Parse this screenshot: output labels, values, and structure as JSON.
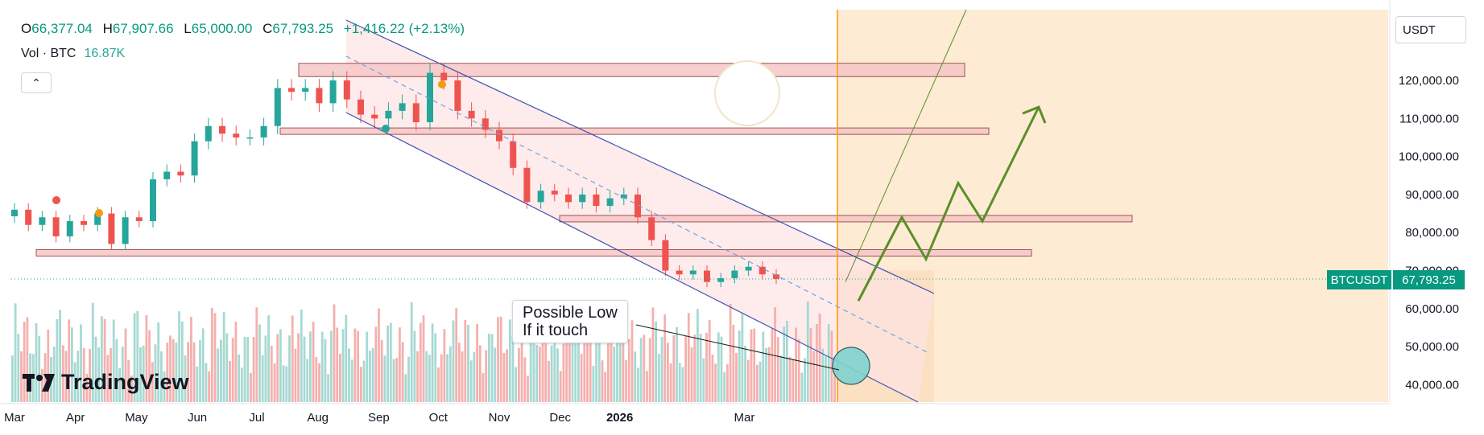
{
  "header": {
    "open_label": "O",
    "open": "66,377.04",
    "high_label": "H",
    "high": "67,907.66",
    "low_label": "L",
    "low": "65,000.00",
    "close_label": "C",
    "close": "67,793.25",
    "change": "+1,416.22 (+2.13%)"
  },
  "volume": {
    "label": "Vol · BTC",
    "value": "16.87K"
  },
  "currency": "USDT",
  "price_tag": {
    "symbol": "BTCUSDT",
    "price": "67,793.25"
  },
  "annotation": {
    "line1": "Possible Low",
    "line2": "If it touch"
  },
  "brand": "TradingView",
  "colors": {
    "up": "#26a69a",
    "down": "#ef5350",
    "zone_fill": "#f7c7c7",
    "zone_stroke": "#8b3a3a",
    "channel": "#3f51b5",
    "projection": "#5a8f29",
    "future_bg": "#fdebd3",
    "now_line": "#ff9800"
  },
  "chart_data": {
    "type": "candlestick",
    "symbol": "BTCUSDT",
    "ylim": [
      35000,
      130000
    ],
    "y_ticks": [
      {
        "value": 120000,
        "label": "120,000.00"
      },
      {
        "value": 110000,
        "label": "110,000.00"
      },
      {
        "value": 100000,
        "label": "100,000.00"
      },
      {
        "value": 90000,
        "label": "90,000.00"
      },
      {
        "value": 80000,
        "label": "80,000.00"
      },
      {
        "value": 70000,
        "label": "70,000.00"
      },
      {
        "value": 60000,
        "label": "60,000.00"
      },
      {
        "value": 50000,
        "label": "50,000.00"
      },
      {
        "value": 40000,
        "label": "40,000.00"
      }
    ],
    "x_ticks": [
      {
        "label": "Mar",
        "week": 0
      },
      {
        "label": "Apr",
        "week": 4.4
      },
      {
        "label": "May",
        "week": 8.8
      },
      {
        "label": "Jun",
        "week": 13.2
      },
      {
        "label": "Jul",
        "week": 17.5
      },
      {
        "label": "Aug",
        "week": 21.9
      },
      {
        "label": "Sep",
        "week": 26.3
      },
      {
        "label": "Oct",
        "week": 30.6
      },
      {
        "label": "Nov",
        "week": 35.0
      },
      {
        "label": "Dec",
        "week": 39.4
      },
      {
        "label": "2026",
        "week": 43.7,
        "bold": true
      },
      {
        "label": "Mar",
        "week": 52.7
      }
    ],
    "week_closes": [
      86000,
      82000,
      84000,
      79000,
      83000,
      82000,
      85000,
      77000,
      84000,
      83000,
      94000,
      96000,
      95000,
      104000,
      108000,
      106000,
      105000,
      105000,
      108000,
      118000,
      117000,
      118000,
      114000,
      120000,
      115000,
      111000,
      110000,
      112000,
      114000,
      109000,
      122000,
      120000,
      112000,
      110000,
      107000,
      104000,
      97000,
      88000,
      91000,
      90000,
      88000,
      90000,
      87000,
      89000,
      90000,
      84000,
      78000,
      70000,
      69000,
      70000,
      67000,
      68000,
      70000,
      71000,
      69000,
      67793
    ],
    "zones": [
      {
        "from": 121000,
        "to": 124500
      },
      {
        "from": 106000,
        "to": 107500
      },
      {
        "from": 83000,
        "to": 84500
      },
      {
        "from": 74000,
        "to": 75500
      }
    ],
    "marker_prices": {
      "now_close": 67793.25
    },
    "projection_path": [
      62000,
      84000,
      73000,
      93000,
      83000,
      113000
    ]
  }
}
